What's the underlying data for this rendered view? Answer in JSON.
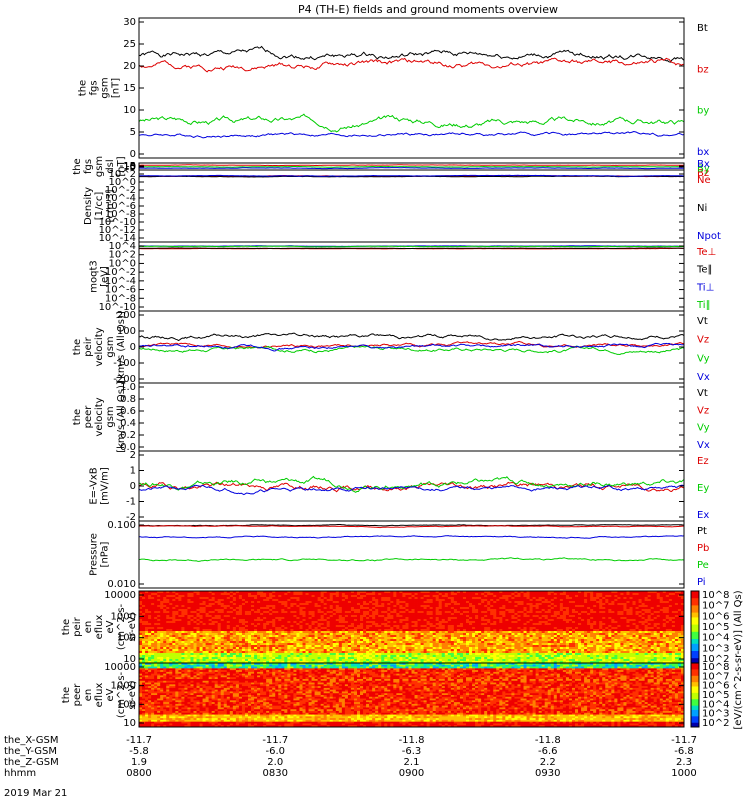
{
  "title": "P4 (TH-E) fields and ground moments overview",
  "date_label": "2019 Mar 21",
  "chart_data": [
    {
      "type": "line",
      "panel": "fgs-gsm",
      "ylabel": [
        "the",
        "fgs",
        "gsm",
        "[nT]"
      ],
      "yticks": [
        "30",
        "25",
        "20",
        "15",
        "10",
        "5",
        "0"
      ],
      "ylim": [
        0,
        30
      ],
      "series": [
        {
          "name": "Bt",
          "color": "#000000",
          "level": 22,
          "amp": 2.0,
          "seed": 1
        },
        {
          "name": "bz",
          "color": "#dd0000",
          "level": 20,
          "amp": 2.0,
          "seed": 2
        },
        {
          "name": "by",
          "color": "#00cc00",
          "level": 8,
          "amp": 2.0,
          "seed": 3
        },
        {
          "name": "bx",
          "color": "#0000dd",
          "level": 5,
          "amp": 1.0,
          "seed": 4
        }
      ]
    },
    {
      "type": "line",
      "panel": "fgs-dsl",
      "ylabel": [
        "the",
        "fgs",
        "gsm",
        "dsl",
        "[nT]"
      ],
      "yticks": [
        "10",
        "5",
        "0",
        "-5",
        "-10",
        "-15"
      ],
      "ylim": [
        -18,
        10
      ],
      "series": [
        {
          "name": "Bz",
          "color": "#dd0000",
          "level": 1,
          "amp": 2.0,
          "seed": 5
        },
        {
          "name": "By",
          "color": "#00cc00",
          "level": -5,
          "amp": 2.0,
          "seed": 6
        },
        {
          "name": "Bx",
          "color": "#0000dd",
          "level": -10,
          "amp": 2.5,
          "seed": 7
        }
      ]
    },
    {
      "type": "line",
      "panel": "density",
      "ylabel": [
        "Density",
        "[1/cc]",
        "[cm-3]"
      ],
      "yticks": [
        "10^2",
        "10^0",
        "10^-2",
        "10^-4",
        "10^-6",
        "10^-8",
        "10^-10",
        "10^-12",
        "10^-14"
      ],
      "ylim": [
        -15,
        2.5
      ],
      "series": [
        {
          "name": "Ne",
          "color": "#dd0000",
          "level": 1.0,
          "amp": 0.15,
          "seed": 8
        },
        {
          "name": "Ni",
          "color": "#000000",
          "level": 0.9,
          "amp": 0.15,
          "seed": 9
        },
        {
          "name": "Npot",
          "color": "#0000dd",
          "level": 1.1,
          "amp": 0.15,
          "seed": 10
        }
      ]
    },
    {
      "type": "line",
      "panel": "temperature",
      "ylabel": [
        "moqt3",
        "[eV]"
      ],
      "yticks": [
        "10^4",
        "10^2",
        "10^0",
        "10^-2",
        "10^-4",
        "10^-6",
        "10^-8",
        "10^-10"
      ],
      "ylim": [
        -11,
        4.5
      ],
      "series": [
        {
          "name": "Te⊥",
          "color": "#dd0000",
          "level": 3.0,
          "amp": 0.1,
          "seed": 11
        },
        {
          "name": "Te∥",
          "color": "#000000",
          "level": 3.1,
          "amp": 0.1,
          "seed": 12
        },
        {
          "name": "Ti⊥",
          "color": "#0000dd",
          "level": 3.6,
          "amp": 0.1,
          "seed": 13
        },
        {
          "name": "Ti∥",
          "color": "#00cc00",
          "level": 3.5,
          "amp": 0.1,
          "seed": 14
        }
      ]
    },
    {
      "type": "line",
      "panel": "peir-velocity",
      "ylabel": [
        "the",
        "peir",
        "velocity",
        "gsm",
        "[km/s (All Qs)]"
      ],
      "yticks": [
        "200",
        "100",
        "0",
        "-100",
        "-200"
      ],
      "ylim": [
        -200,
        200
      ],
      "series": [
        {
          "name": "Vt",
          "color": "#000000",
          "level": 60,
          "amp": 30,
          "seed": 15
        },
        {
          "name": "Vz",
          "color": "#dd0000",
          "level": 10,
          "amp": 25,
          "seed": 16
        },
        {
          "name": "Vy",
          "color": "#00cc00",
          "level": -10,
          "amp": 30,
          "seed": 17
        },
        {
          "name": "Vx",
          "color": "#0000dd",
          "level": 0,
          "amp": 25,
          "seed": 18
        }
      ]
    },
    {
      "type": "line",
      "panel": "peer-velocity",
      "ylabel": [
        "the",
        "peer",
        "velocity",
        "gsm",
        "[km/s (All Qs)]"
      ],
      "yticks": [
        "1.0",
        "0.8",
        "0.6",
        "0.4",
        "0.2",
        "0.0"
      ],
      "ylim": [
        0,
        1
      ],
      "series": [
        {
          "name": "Vt",
          "color": "#000000"
        },
        {
          "name": "Vz",
          "color": "#dd0000"
        },
        {
          "name": "Vy",
          "color": "#00cc00"
        },
        {
          "name": "Vx",
          "color": "#0000dd"
        }
      ]
    },
    {
      "type": "line",
      "panel": "efield",
      "ylabel": [
        "E=-VxB",
        "[mV/m]"
      ],
      "yticks": [
        "2",
        "1",
        "0",
        "-1",
        "-2"
      ],
      "ylim": [
        -2.2,
        2.6
      ],
      "series": [
        {
          "name": "Ez",
          "color": "#dd0000",
          "level": 0.2,
          "amp": 0.6,
          "seed": 19
        },
        {
          "name": "Ey",
          "color": "#00cc00",
          "level": 0.4,
          "amp": 0.6,
          "seed": 20
        },
        {
          "name": "Ex",
          "color": "#0000dd",
          "level": 0.0,
          "amp": 0.4,
          "seed": 21
        }
      ]
    },
    {
      "type": "line",
      "panel": "pressure",
      "ylabel": [
        "Pressure",
        "[nPa]"
      ],
      "yticks": [
        "0.100",
        "0.010"
      ],
      "ylim": [
        -2.4,
        -0.5
      ],
      "series": [
        {
          "name": "Pt",
          "color": "#000000",
          "level": -0.62,
          "amp": 0.03,
          "seed": 22
        },
        {
          "name": "Pb",
          "color": "#dd0000",
          "level": -0.65,
          "amp": 0.03,
          "seed": 23
        },
        {
          "name": "Pe",
          "color": "#00cc00",
          "level": -1.6,
          "amp": 0.07,
          "seed": 24
        },
        {
          "name": "Pi",
          "color": "#0000dd",
          "level": -0.95,
          "amp": 0.05,
          "seed": 25
        }
      ]
    },
    {
      "type": "heatmap",
      "panel": "peir-eflux",
      "ylabel": [
        "the",
        "peir",
        "en",
        "eflux",
        "eV",
        "(cm^2-s-",
        "sr-eV)"
      ],
      "yticks": [
        "10000",
        "1000",
        "100",
        "10"
      ],
      "seed": 26
    },
    {
      "type": "heatmap",
      "panel": "peer-eflux",
      "ylabel": [
        "the",
        "peer",
        "en",
        "eflux",
        "eV",
        "(cm^2-s-",
        "sr-eV)"
      ],
      "yticks": [
        "10000",
        "1000",
        "100",
        "10"
      ],
      "seed": 27
    }
  ],
  "colorbar": {
    "ticks": [
      "10^8",
      "10^7",
      "10^6",
      "10^5",
      "10^4",
      "10^3",
      "10^2",
      "10^8",
      "10^7",
      "10^6",
      "10^5",
      "10^4",
      "10^3",
      "10^2"
    ],
    "label": "[eV/(cm^2-s-sr-eV)] (All Qs)"
  },
  "x_axis": {
    "rows": [
      {
        "label": "the_X-GSM",
        "values": [
          "-11.7",
          "-11.7",
          "-11.8",
          "-11.8",
          "-11.7"
        ]
      },
      {
        "label": "the_Y-GSM",
        "values": [
          "-5.8",
          "-6.0",
          "-6.3",
          "-6.6",
          "-6.8"
        ]
      },
      {
        "label": "the_Z-GSM",
        "values": [
          "1.9",
          "2.0",
          "2.1",
          "2.2",
          "2.3"
        ]
      },
      {
        "label": "hhmm",
        "values": [
          "0800",
          "0830",
          "0900",
          "0930",
          "1000"
        ]
      }
    ]
  }
}
